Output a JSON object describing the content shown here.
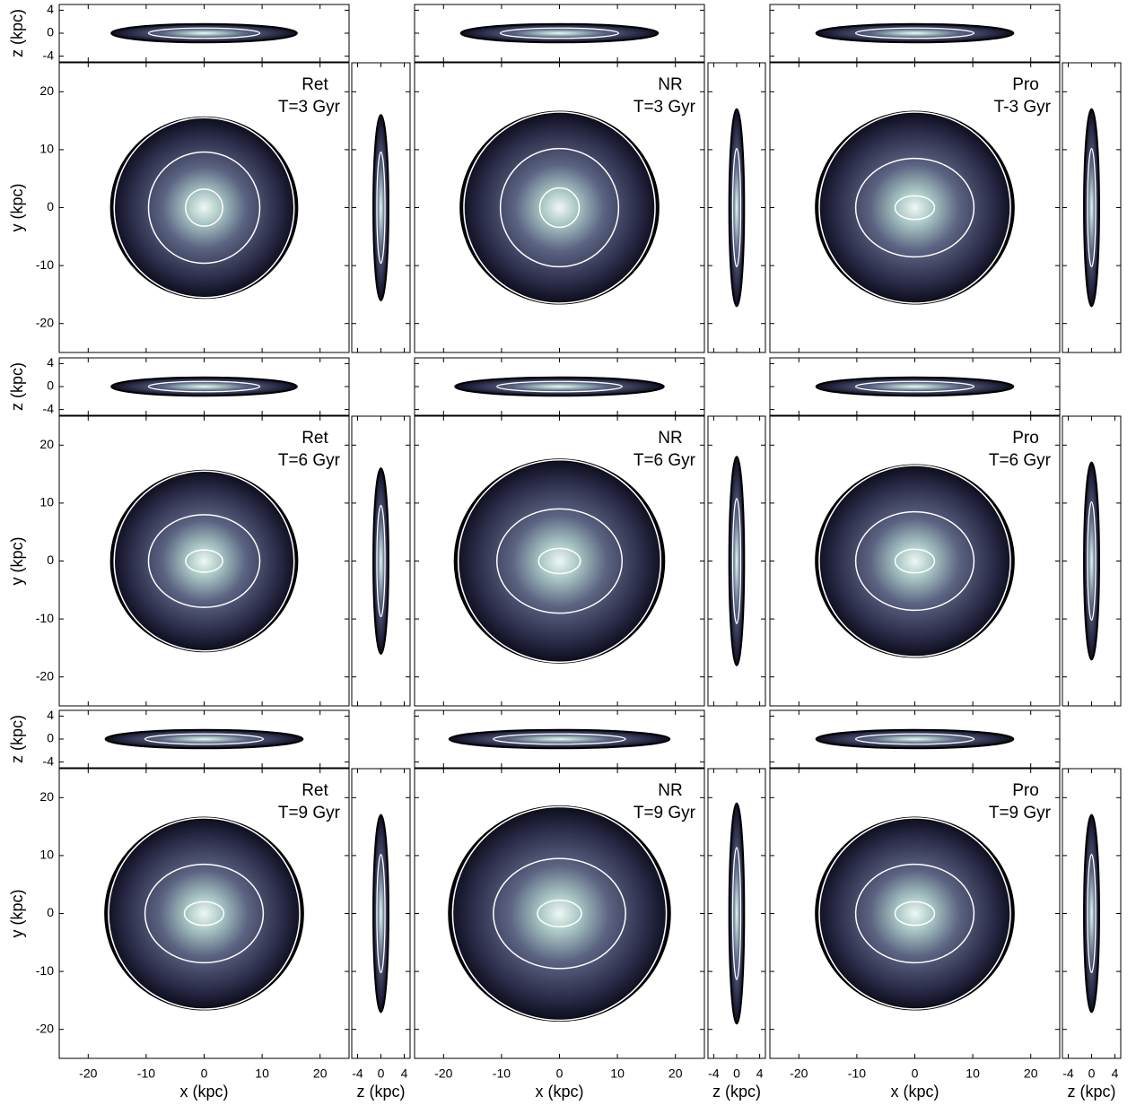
{
  "chart_data": {
    "type": "density-grid",
    "xlim": [
      -25,
      25
    ],
    "ylim": [
      -25,
      25
    ],
    "zlim": [
      -5,
      5
    ],
    "xticks": [
      -20,
      -10,
      0,
      10,
      20
    ],
    "yticks": [
      -20,
      -10,
      0,
      10,
      20
    ],
    "zticks": [
      -4,
      0,
      4
    ],
    "x_label": "x (kpc)",
    "y_label": "y (kpc)",
    "z_label": "z (kpc)",
    "panels": [
      {
        "model": "Ret",
        "time": "T=3 Gyr"
      },
      {
        "model": "NR",
        "time": "T=3 Gyr"
      },
      {
        "model": "Pro",
        "time": "T-3 Gyr"
      },
      {
        "model": "Ret",
        "time": "T=6 Gyr"
      },
      {
        "model": "NR",
        "time": "T=6 Gyr"
      },
      {
        "model": "Pro",
        "time": "T=6 Gyr"
      },
      {
        "model": "Ret",
        "time": "T=9 Gyr"
      },
      {
        "model": "NR",
        "time": "T=9 Gyr"
      },
      {
        "model": "Pro",
        "time": "T=9 Gyr"
      }
    ]
  }
}
